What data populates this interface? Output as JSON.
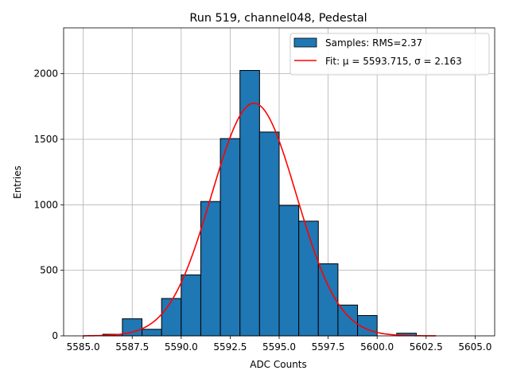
{
  "chart_data": {
    "type": "bar",
    "title": "Run 519, channel048, Pedestal",
    "xlabel": "ADC Counts",
    "ylabel": "Entries",
    "xlim": [
      5584.0,
      5606.0
    ],
    "ylim": [
      0,
      2350
    ],
    "xticks": [
      5585.0,
      5587.5,
      5590.0,
      5592.5,
      5595.0,
      5597.5,
      5600.0,
      5602.5,
      5605.0
    ],
    "xtick_labels": [
      "5585.0",
      "5587.5",
      "5590.0",
      "5592.5",
      "5595.0",
      "5597.5",
      "5600.0",
      "5602.5",
      "5605.0"
    ],
    "yticks": [
      0,
      500,
      1000,
      1500,
      2000
    ],
    "ytick_labels": [
      "0",
      "500",
      "1000",
      "1500",
      "2000"
    ],
    "grid": true,
    "legend_position": "top-right",
    "bar_color": "#1f77b4",
    "fit_color": "#ff0000",
    "histogram": {
      "name": "Samples: RMS=2.37",
      "bins": [
        {
          "x0": 5586.0,
          "x1": 5587.0,
          "value": 12
        },
        {
          "x0": 5587.0,
          "x1": 5588.0,
          "value": 130
        },
        {
          "x0": 5588.0,
          "x1": 5589.0,
          "value": 50
        },
        {
          "x0": 5589.0,
          "x1": 5590.0,
          "value": 285
        },
        {
          "x0": 5590.0,
          "x1": 5591.0,
          "value": 465
        },
        {
          "x0": 5591.0,
          "x1": 5592.0,
          "value": 1025
        },
        {
          "x0": 5592.0,
          "x1": 5593.0,
          "value": 1505
        },
        {
          "x0": 5593.0,
          "x1": 5594.0,
          "value": 2025
        },
        {
          "x0": 5594.0,
          "x1": 5595.0,
          "value": 1555
        },
        {
          "x0": 5595.0,
          "x1": 5596.0,
          "value": 995
        },
        {
          "x0": 5596.0,
          "x1": 5597.0,
          "value": 875
        },
        {
          "x0": 5597.0,
          "x1": 5598.0,
          "value": 550
        },
        {
          "x0": 5598.0,
          "x1": 5599.0,
          "value": 235
        },
        {
          "x0": 5599.0,
          "x1": 5600.0,
          "value": 155
        },
        {
          "x0": 5601.0,
          "x1": 5602.0,
          "value": 20
        }
      ]
    },
    "fit": {
      "name": "Fit: μ = 5593.715, σ = 2.163",
      "mu": 5593.715,
      "sigma": 2.163,
      "amplitude": 1775,
      "x_range": [
        5585.0,
        5603.0
      ]
    }
  }
}
